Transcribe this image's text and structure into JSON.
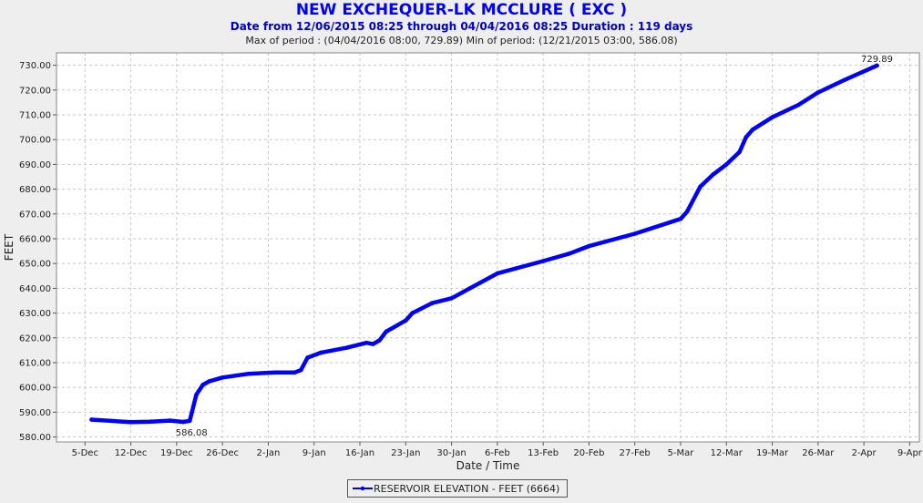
{
  "header": {
    "title": "NEW EXCHEQUER-LK MCCLURE ( EXC )",
    "subtitle": "Date from 12/06/2015 08:25 through 04/04/2016 08:25 Duration : 119 days",
    "extremes": "Max of period : (04/04/2016 08:00, 729.89)  Min of period: (12/21/2015 03:00,  586.08)"
  },
  "legend": {
    "label": "RESERVOIR ELEVATION - FEET (6664)"
  },
  "colors": {
    "series": "#0000ff",
    "grid": "#c8c8c8",
    "plot_bg": "#ffffff"
  },
  "chart_data": {
    "type": "line",
    "xlabel": "Date / Time",
    "ylabel": "FEET",
    "ylim": [
      578,
      735
    ],
    "x_tick_labels": [
      "5-Dec",
      "12-Dec",
      "19-Dec",
      "26-Dec",
      "2-Jan",
      "9-Jan",
      "16-Jan",
      "23-Jan",
      "30-Jan",
      "6-Feb",
      "13-Feb",
      "20-Feb",
      "27-Feb",
      "5-Mar",
      "12-Mar",
      "19-Mar",
      "26-Mar",
      "2-Apr",
      "9-Apr"
    ],
    "y_tick_labels": [
      "580.00",
      "590.00",
      "600.00",
      "610.00",
      "620.00",
      "630.00",
      "640.00",
      "650.00",
      "660.00",
      "670.00",
      "680.00",
      "690.00",
      "700.00",
      "710.00",
      "720.00",
      "730.00"
    ],
    "grid": true,
    "legend_position": "bottom-center",
    "annotations": [
      {
        "text": "729.89",
        "x": "2016-04-04",
        "y": 729.89
      },
      {
        "text": "586.08",
        "x": "2015-12-21",
        "y": 586.08
      }
    ],
    "series": [
      {
        "name": "RESERVOIR ELEVATION - FEET (6664)",
        "x": [
          "2015-12-06",
          "2015-12-09",
          "2015-12-12",
          "2015-12-15",
          "2015-12-18",
          "2015-12-20",
          "2015-12-21",
          "2015-12-22",
          "2015-12-23",
          "2015-12-24",
          "2015-12-26",
          "2015-12-30",
          "2016-01-03",
          "2016-01-06",
          "2016-01-07",
          "2016-01-08",
          "2016-01-10",
          "2016-01-14",
          "2016-01-17",
          "2016-01-18",
          "2016-01-19",
          "2016-01-20",
          "2016-01-23",
          "2016-01-24",
          "2016-01-27",
          "2016-01-30",
          "2016-02-06",
          "2016-02-13",
          "2016-02-17",
          "2016-02-20",
          "2016-02-27",
          "2016-03-05",
          "2016-03-06",
          "2016-03-08",
          "2016-03-10",
          "2016-03-12",
          "2016-03-14",
          "2016-03-15",
          "2016-03-16",
          "2016-03-19",
          "2016-03-23",
          "2016-03-26",
          "2016-03-30",
          "2016-04-04"
        ],
        "y": [
          587,
          586.5,
          586,
          586.2,
          586.6,
          586.08,
          586.5,
          597,
          601,
          602.5,
          604,
          605.5,
          606,
          606,
          607,
          612,
          614,
          616,
          618,
          617.5,
          619,
          622.5,
          627,
          630,
          634,
          636,
          646,
          651,
          654,
          657,
          662,
          668,
          671,
          681,
          686,
          690,
          695,
          701,
          704,
          709,
          714,
          719,
          724,
          729.89
        ]
      }
    ]
  }
}
